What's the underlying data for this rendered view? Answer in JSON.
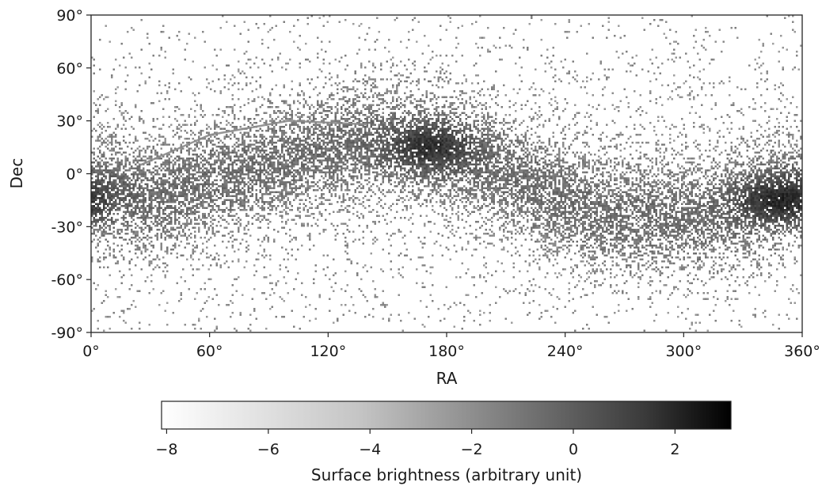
{
  "chart_data": {
    "type": "heatmap",
    "title": "",
    "xlabel": "RA",
    "ylabel": "Dec",
    "xlim": [
      0,
      360
    ],
    "ylim": [
      -90,
      90
    ],
    "x_ticks": [
      {
        "value": 0,
        "label": "0°"
      },
      {
        "value": 60,
        "label": "60°"
      },
      {
        "value": 120,
        "label": "120°"
      },
      {
        "value": 180,
        "label": "180°"
      },
      {
        "value": 240,
        "label": "240°"
      },
      {
        "value": 300,
        "label": "300°"
      },
      {
        "value": 360,
        "label": "360°"
      }
    ],
    "y_ticks": [
      {
        "value": 90,
        "label": "90°"
      },
      {
        "value": 60,
        "label": "60°"
      },
      {
        "value": 30,
        "label": "30°"
      },
      {
        "value": 0,
        "label": "0°"
      },
      {
        "value": -30,
        "label": "-30°"
      },
      {
        "value": -60,
        "label": "-60°"
      },
      {
        "value": -90,
        "label": "-90°"
      }
    ],
    "colormap": "Greys",
    "colorbar": {
      "label": "Surface brightness (arbitrary unit)",
      "range": [
        -8.1,
        3.1
      ],
      "ticks": [
        {
          "value": -8,
          "label": "−8"
        },
        {
          "value": -6,
          "label": "−6"
        },
        {
          "value": -4,
          "label": "−4"
        },
        {
          "value": -2,
          "label": "−2"
        },
        {
          "value": 0,
          "label": "0"
        },
        {
          "value": 2,
          "label": "2"
        }
      ]
    },
    "density_structure": {
      "galactic_plane_band": [
        {
          "ra": 0,
          "dec": -10
        },
        {
          "ra": 30,
          "dec": -15
        },
        {
          "ra": 90,
          "dec": 5
        },
        {
          "ra": 140,
          "dec": 20
        },
        {
          "ra": 175,
          "dec": 15
        },
        {
          "ra": 210,
          "dec": 0
        },
        {
          "ra": 260,
          "dec": -25
        },
        {
          "ra": 310,
          "dec": -25
        },
        {
          "ra": 345,
          "dec": -15
        },
        {
          "ra": 360,
          "dec": -10
        }
      ],
      "bright_peaks": [
        {
          "ra": 172,
          "dec": 15,
          "value": 0.5
        },
        {
          "ra": 350,
          "dec": -15,
          "value": 1.0
        }
      ],
      "arc_feature": [
        {
          "ra": 25,
          "dec": 5
        },
        {
          "ra": 60,
          "dec": 22
        },
        {
          "ra": 100,
          "dec": 30
        },
        {
          "ra": 140,
          "dec": 28
        }
      ]
    }
  }
}
